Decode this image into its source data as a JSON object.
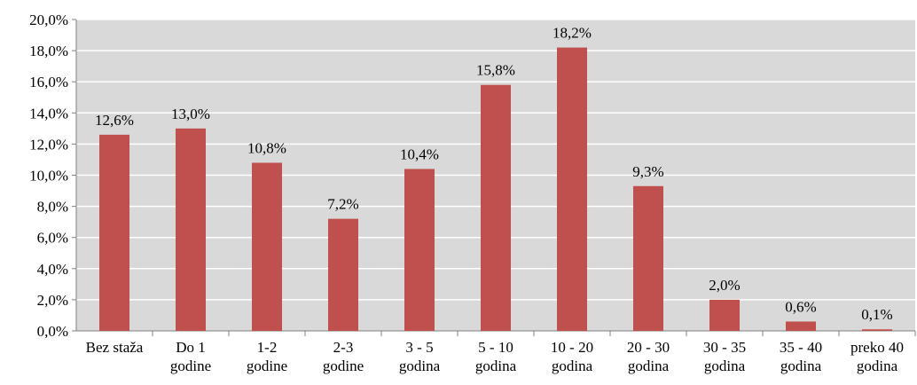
{
  "chart_data": {
    "type": "bar",
    "title": "",
    "xlabel": "",
    "ylabel": "",
    "categories": [
      [
        "Bez staža"
      ],
      [
        "Do 1",
        "godine"
      ],
      [
        "1-2",
        "godine"
      ],
      [
        "2-3",
        "godine"
      ],
      [
        "3 - 5",
        "godina"
      ],
      [
        "5 - 10",
        "godina"
      ],
      [
        "10 - 20",
        "godina"
      ],
      [
        "20 - 30",
        "godina"
      ],
      [
        "30 - 35",
        "godina"
      ],
      [
        "35 - 40",
        "godina"
      ],
      [
        "preko 40",
        "godina"
      ]
    ],
    "values": [
      12.6,
      13.0,
      10.8,
      7.2,
      10.4,
      15.8,
      18.2,
      9.3,
      2.0,
      0.6,
      0.1
    ],
    "value_labels": [
      "12,6%",
      "13,0%",
      "10,8%",
      "7,2%",
      "10,4%",
      "15,8%",
      "18,2%",
      "9,3%",
      "2,0%",
      "0,6%",
      "0,1%"
    ],
    "ylim": [
      0,
      20
    ],
    "yticks": [
      0,
      2,
      4,
      6,
      8,
      10,
      12,
      14,
      16,
      18,
      20
    ],
    "ytick_labels": [
      "0,0%",
      "2,0%",
      "4,0%",
      "6,0%",
      "8,0%",
      "10,0%",
      "12,0%",
      "14,0%",
      "16,0%",
      "18,0%",
      "20,0%"
    ],
    "grid": true,
    "legend": "none",
    "colors": {
      "bar": "#C0504D",
      "plot_background": "#D9D9D9",
      "gridline": "#FFFFFF",
      "axis": "#808080"
    }
  }
}
